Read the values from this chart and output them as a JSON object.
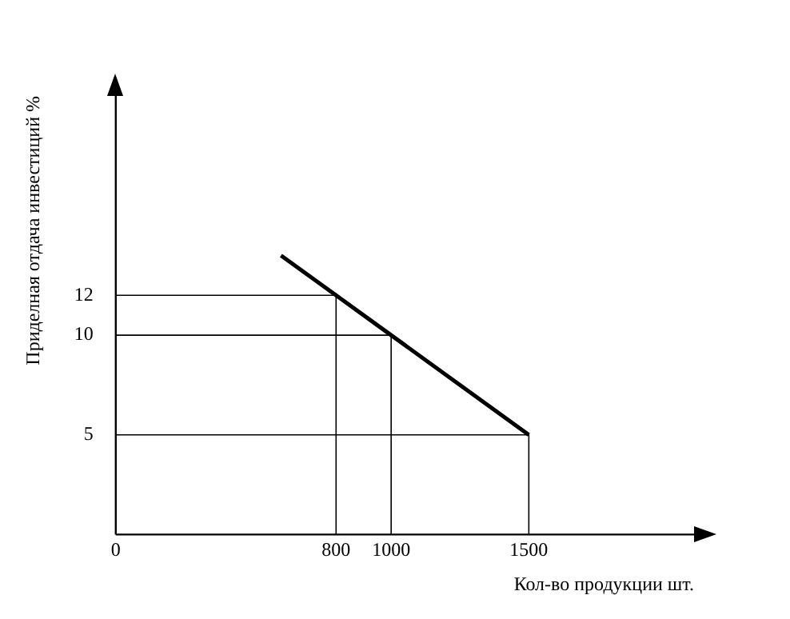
{
  "chart_data": {
    "type": "line",
    "xlabel": "Кол-во продукции шт.",
    "ylabel": "Приделная отдача инвестиций %",
    "x": [
      600,
      800,
      1000,
      1500
    ],
    "series": [
      {
        "color": "#000000",
        "values": [
          14,
          12,
          10,
          5
        ]
      },
      {
        "color": "#000000",
        "x": [
          0,
          800,
          800
        ],
        "values": [
          12,
          12,
          0
        ]
      },
      {
        "color": "#000000",
        "x": [
          0,
          1000,
          1000
        ],
        "values": [
          10,
          10,
          0
        ]
      },
      {
        "color": "#000000",
        "x": [
          0,
          1500,
          1500
        ],
        "values": [
          5,
          5,
          0
        ]
      }
    ],
    "xlim": [
      0,
      2100
    ],
    "ylim": [
      0,
      22
    ],
    "xticks": [
      0,
      800,
      1000,
      1500
    ],
    "yticks": [
      5,
      10,
      12
    ],
    "legend": false,
    "marker": "none",
    "line_style": "solid"
  }
}
